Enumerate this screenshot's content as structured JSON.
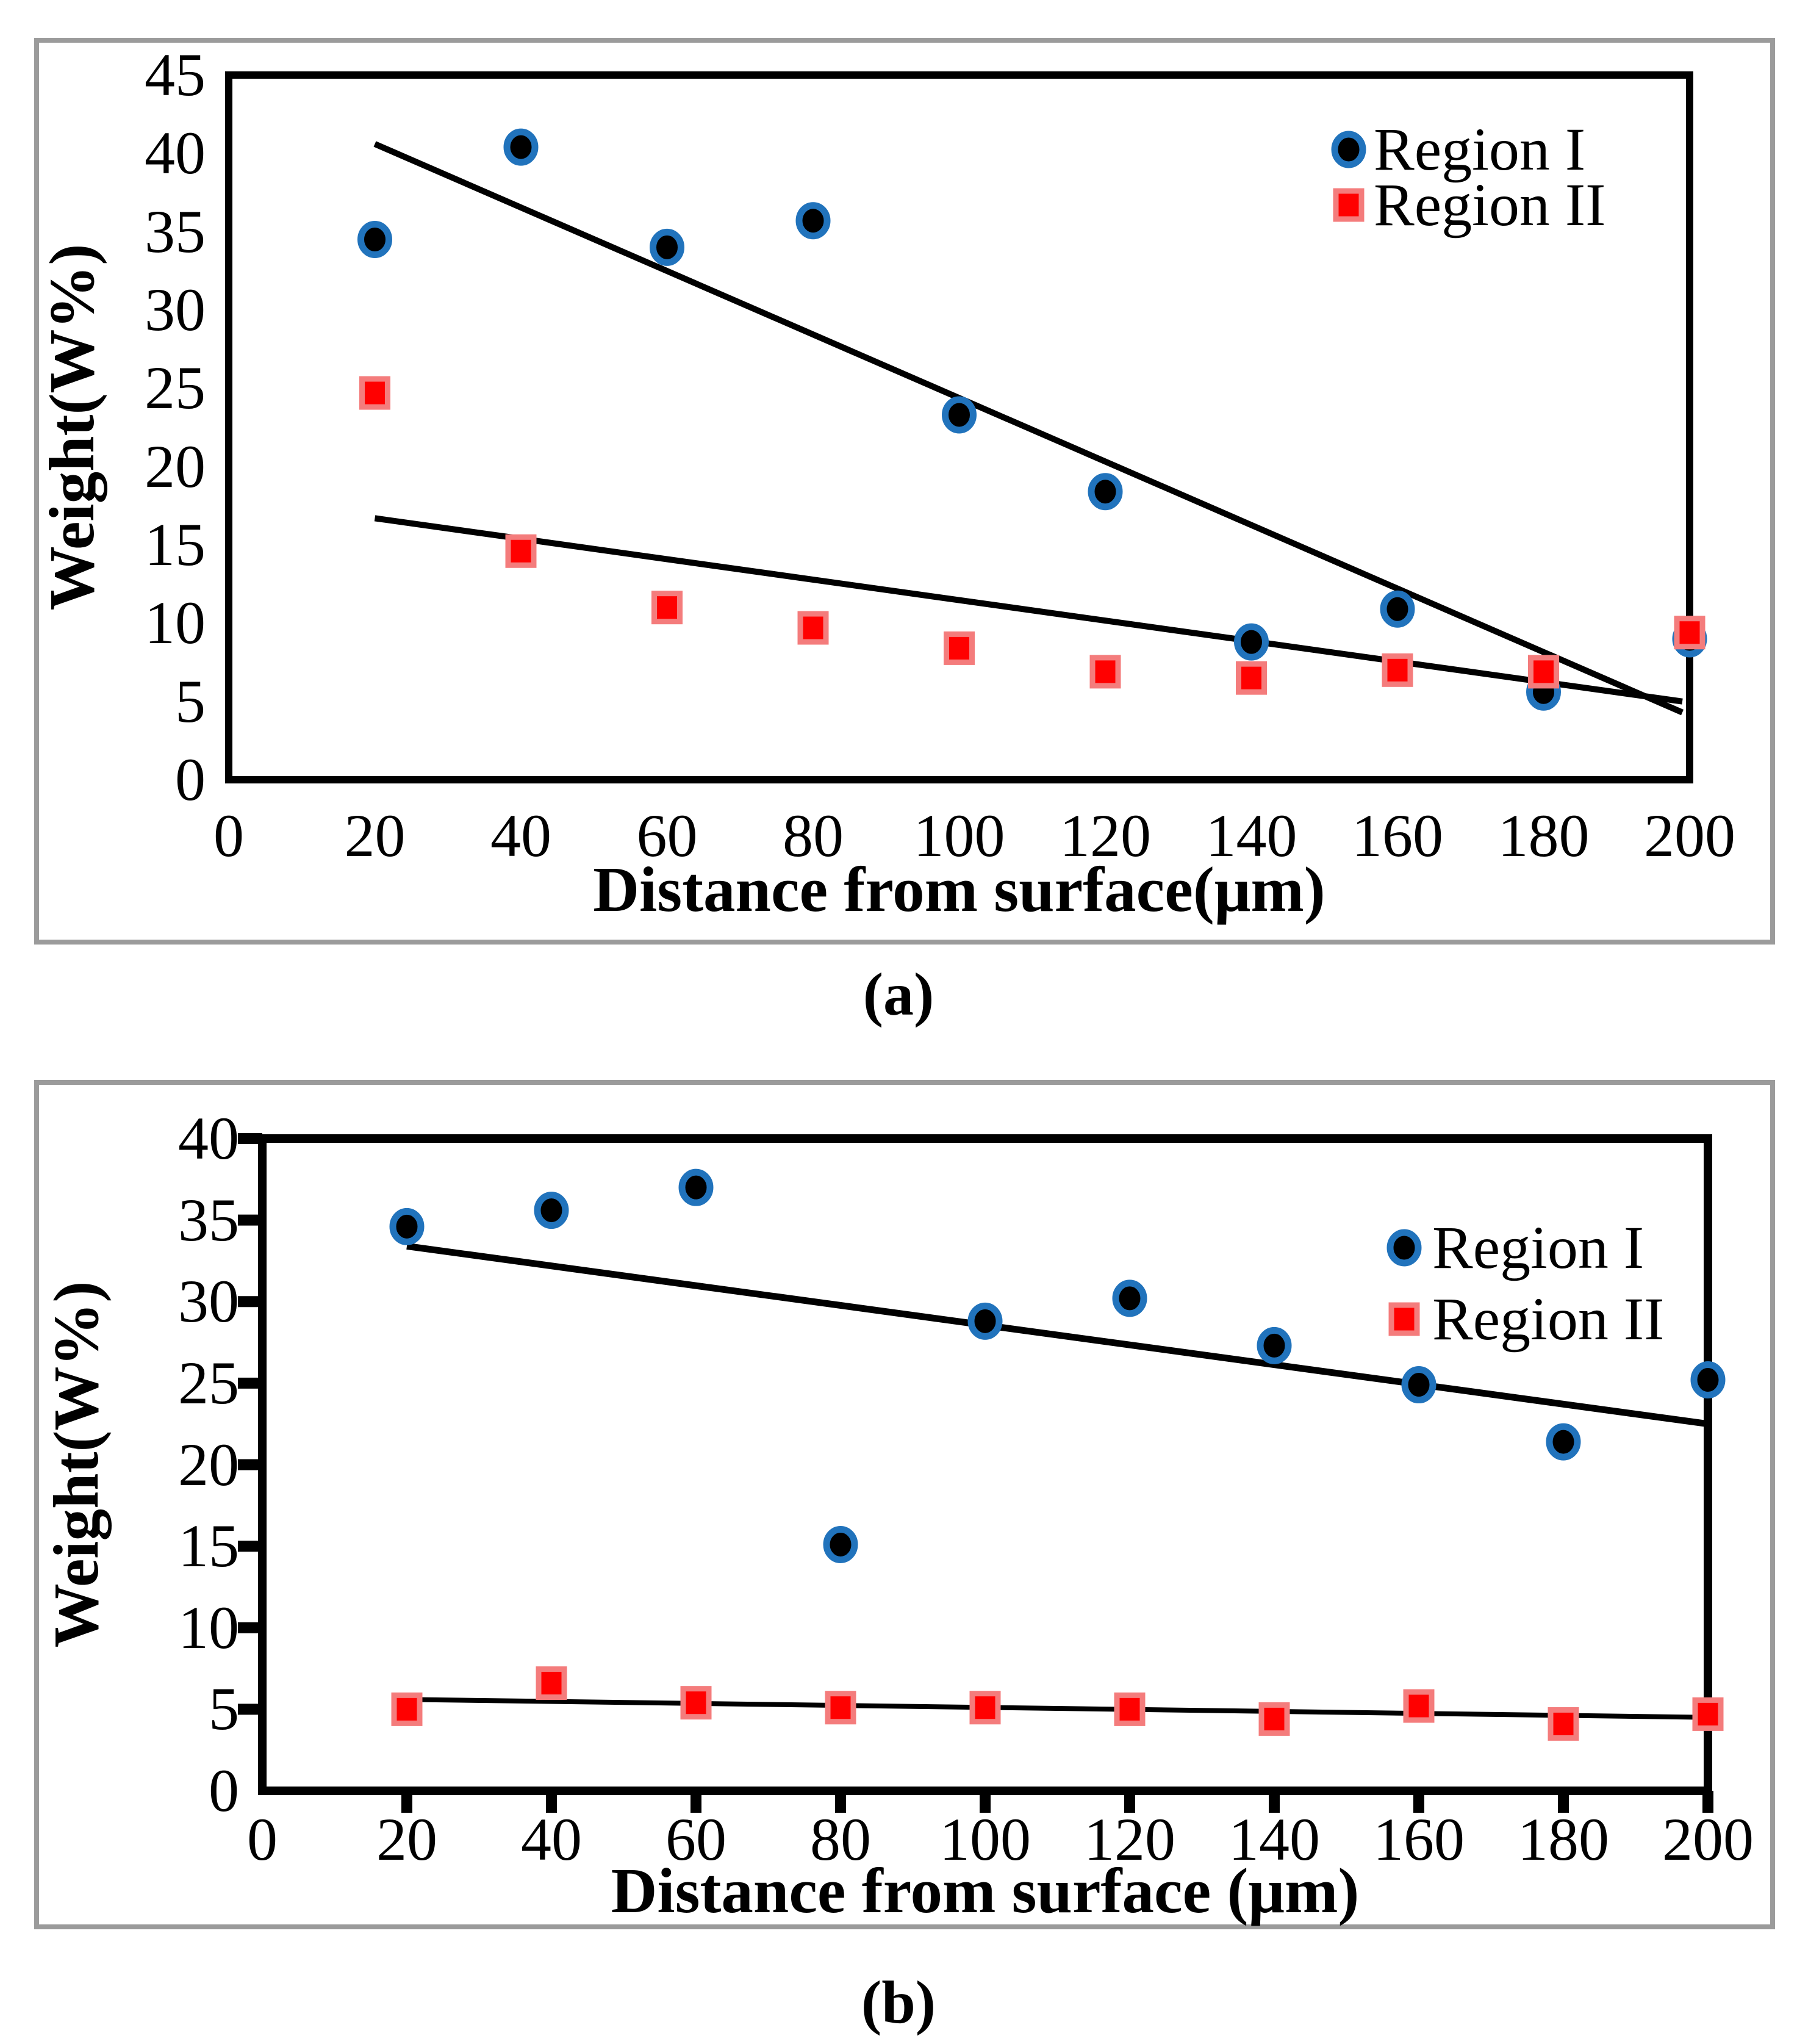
{
  "figure_type": "two-panel scatter figure",
  "colors": {
    "region1_fill": "#000000",
    "region1_ring": "#2173bc",
    "region2_fill": "#ff0000",
    "region2_border": "#f47c7c",
    "trendline": "#000000",
    "frame": "#000000",
    "panel_border": "#9b9b9b",
    "text": "#000000",
    "background": "#ffffff"
  },
  "chart_data": [
    {
      "panel_label": "(a)",
      "type": "scatter",
      "title": "",
      "xlabel": "Distance from surface(μm)",
      "ylabel": "Weight(W%)",
      "xlim": [
        0,
        200
      ],
      "ylim": [
        0,
        45
      ],
      "x_ticks": [
        0,
        20,
        40,
        60,
        80,
        100,
        120,
        140,
        160,
        180,
        200
      ],
      "y_ticks": [
        0,
        5,
        10,
        15,
        20,
        25,
        30,
        35,
        40,
        45
      ],
      "grid": false,
      "axis_tick_marks": false,
      "legend_position": "top-right-inside",
      "series": [
        {
          "name": "Region I",
          "marker": "circle",
          "x": [
            20,
            40,
            60,
            80,
            100,
            120,
            140,
            160,
            180,
            200
          ],
          "y": [
            34.5,
            40.4,
            34.0,
            35.7,
            23.3,
            18.4,
            8.8,
            10.9,
            5.6,
            9.0
          ]
        },
        {
          "name": "Region II",
          "marker": "square",
          "x": [
            20,
            40,
            60,
            80,
            100,
            120,
            140,
            160,
            180,
            200
          ],
          "y": [
            24.7,
            14.6,
            11.0,
            9.7,
            8.4,
            6.9,
            6.5,
            7.0,
            6.9,
            9.4
          ]
        }
      ],
      "trendlines": [
        {
          "series": "Region I",
          "x1": 20,
          "y1": 40.6,
          "x2": 199,
          "y2": 4.3,
          "width": 10
        },
        {
          "series": "Region II",
          "x1": 20,
          "y1": 16.7,
          "x2": 199,
          "y2": 5.0,
          "width": 10
        }
      ]
    },
    {
      "panel_label": "(b)",
      "type": "scatter",
      "title": "",
      "xlabel": "Distance from surface (μm)",
      "ylabel": "Weight(W%)",
      "xlim": [
        0,
        200
      ],
      "ylim": [
        0,
        40
      ],
      "x_ticks": [
        0,
        20,
        40,
        60,
        80,
        100,
        120,
        140,
        160,
        180,
        200
      ],
      "y_ticks": [
        0,
        5,
        10,
        15,
        20,
        25,
        30,
        35,
        40
      ],
      "grid": false,
      "axis_tick_marks": true,
      "legend_position": "right-inside",
      "series": [
        {
          "name": "Region I",
          "marker": "circle",
          "x": [
            20,
            40,
            60,
            80,
            100,
            120,
            140,
            160,
            180,
            200
          ],
          "y": [
            34.6,
            35.6,
            37.0,
            15.1,
            28.8,
            30.2,
            27.3,
            24.9,
            21.4,
            25.2
          ]
        },
        {
          "name": "Region II",
          "marker": "square",
          "x": [
            20,
            40,
            60,
            80,
            100,
            120,
            140,
            160,
            180,
            200
          ],
          "y": [
            5.0,
            6.6,
            5.4,
            5.1,
            5.1,
            5.0,
            4.4,
            5.2,
            4.1,
            4.7
          ]
        }
      ],
      "trendlines": [
        {
          "series": "Region I",
          "x1": 20,
          "y1": 33.4,
          "x2": 200,
          "y2": 22.5,
          "width": 11
        },
        {
          "series": "Region II",
          "x1": 20,
          "y1": 5.6,
          "x2": 200,
          "y2": 4.5,
          "width": 8
        }
      ]
    }
  ]
}
